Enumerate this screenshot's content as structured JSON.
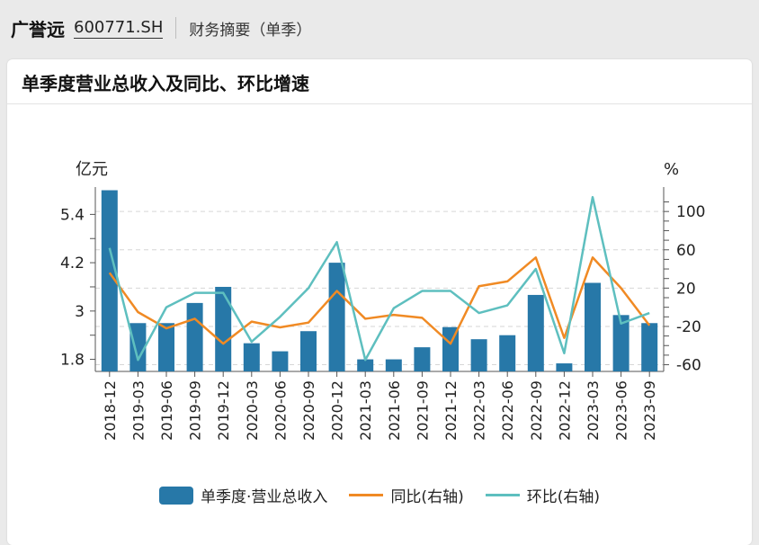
{
  "header": {
    "company": "广誉远",
    "code": "600771.SH",
    "section": "财务摘要（单季）"
  },
  "chart_data": {
    "type": "bar",
    "title": "单季度营业总收入及同比、环比增速",
    "left_unit": "亿元",
    "right_unit": "%",
    "left_ylim": [
      1.5,
      5.9
    ],
    "left_ticks": [
      "1.8",
      "3",
      "4.2",
      "5.4"
    ],
    "right_ylim": [
      -67,
      118
    ],
    "right_ticks": [
      "-60",
      "-20",
      "20",
      "60",
      "100"
    ],
    "categories": [
      "2018-12",
      "2019-03",
      "2019-06",
      "2019-09",
      "2019-12",
      "2020-03",
      "2020-06",
      "2020-09",
      "2020-12",
      "2021-03",
      "2021-06",
      "2021-09",
      "2021-12",
      "2022-03",
      "2022-06",
      "2022-09",
      "2022-12",
      "2023-03",
      "2023-06",
      "2023-09"
    ],
    "series": [
      {
        "name": "单季度·营业总收入",
        "kind": "bar",
        "axis": "left",
        "color": "#2778a8",
        "values": [
          6.0,
          2.7,
          2.7,
          3.2,
          3.6,
          2.2,
          2.0,
          2.5,
          4.2,
          1.8,
          1.8,
          2.1,
          2.6,
          2.3,
          2.4,
          3.4,
          1.7,
          3.7,
          2.9,
          2.7
        ]
      },
      {
        "name": "同比(右轴)",
        "kind": "line",
        "axis": "right",
        "color": "#f08a24",
        "values": [
          36,
          -5,
          -22,
          -12,
          -38,
          -15,
          -21,
          -16,
          17,
          -12,
          -8,
          -11,
          -38,
          22,
          27,
          52,
          -32,
          52,
          20,
          -19
        ]
      },
      {
        "name": "环比(右轴)",
        "kind": "line",
        "axis": "right",
        "color": "#5ebfbf",
        "values": [
          62,
          -55,
          0,
          15,
          15,
          -36,
          -10,
          20,
          68,
          -55,
          -1,
          17,
          17,
          -6,
          2,
          40,
          -48,
          115,
          -17,
          -6
        ]
      }
    ]
  }
}
